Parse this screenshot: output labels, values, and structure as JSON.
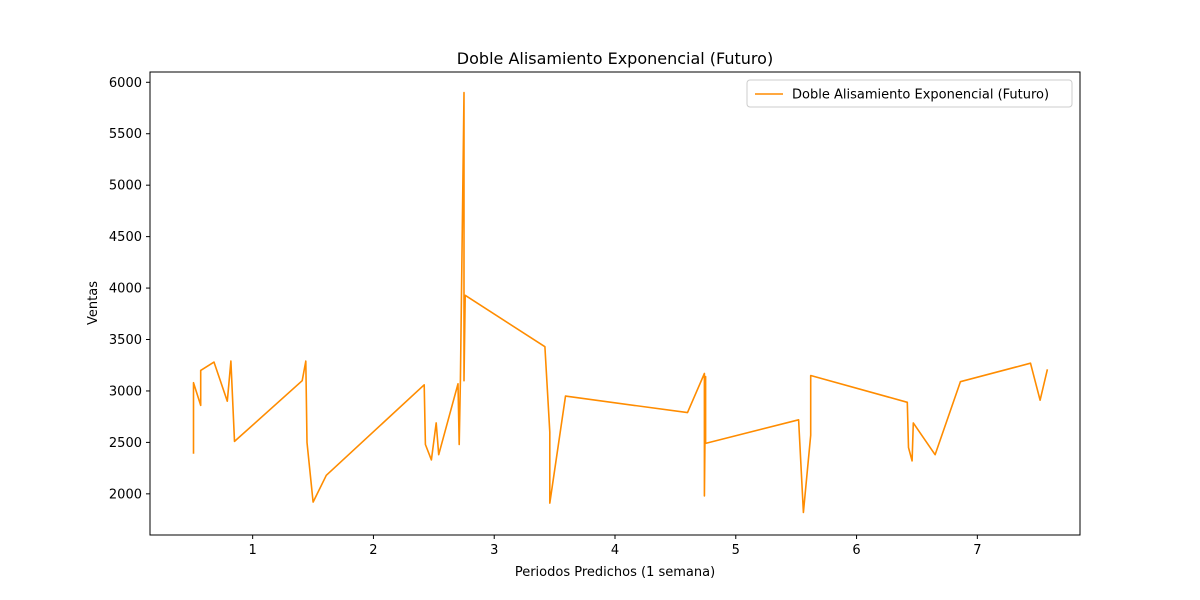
{
  "chart_data": {
    "type": "line",
    "title": "Doble Alisamiento Exponencial (Futuro)",
    "xlabel": "Periodos Predichos (1 semana)",
    "ylabel": "Ventas",
    "xlim": [
      0.15,
      7.85
    ],
    "ylim": [
      1600,
      6100
    ],
    "xticks": [
      1,
      2,
      3,
      4,
      5,
      6,
      7
    ],
    "yticks": [
      2000,
      2500,
      3000,
      3500,
      4000,
      4500,
      5000,
      5500,
      6000
    ],
    "legend": {
      "position": "top-right",
      "entries": [
        "Doble Alisamiento Exponencial (Futuro)"
      ]
    },
    "grid": false,
    "series": [
      {
        "name": "Doble Alisamiento Exponencial (Futuro)",
        "color": "#ff8c00",
        "x": [
          0.51,
          0.51,
          0.57,
          0.57,
          0.68,
          0.79,
          0.82,
          0.85,
          1.41,
          1.44,
          1.45,
          1.5,
          1.61,
          2.42,
          2.43,
          2.48,
          2.52,
          2.54,
          2.7,
          2.71,
          2.72,
          2.75,
          2.75,
          2.75,
          2.76,
          3.42,
          3.46,
          3.46,
          3.59,
          4.6,
          4.74,
          4.74,
          4.75,
          4.75,
          5.52,
          5.56,
          5.62,
          5.62,
          6.42,
          6.43,
          6.46,
          6.47,
          6.65,
          6.86,
          7.44,
          7.52,
          7.58
        ],
        "y": [
          2390,
          3080,
          2860,
          3200,
          3280,
          2900,
          3290,
          2510,
          3100,
          3290,
          2500,
          1920,
          2180,
          3060,
          2480,
          2330,
          2690,
          2380,
          3070,
          2480,
          3100,
          5900,
          3920,
          3100,
          3930,
          3430,
          2600,
          1910,
          2950,
          2790,
          3170,
          1980,
          3140,
          2490,
          2720,
          1820,
          2570,
          3150,
          2890,
          2450,
          2320,
          2690,
          2380,
          3090,
          3270,
          2910,
          3210
        ]
      }
    ]
  }
}
